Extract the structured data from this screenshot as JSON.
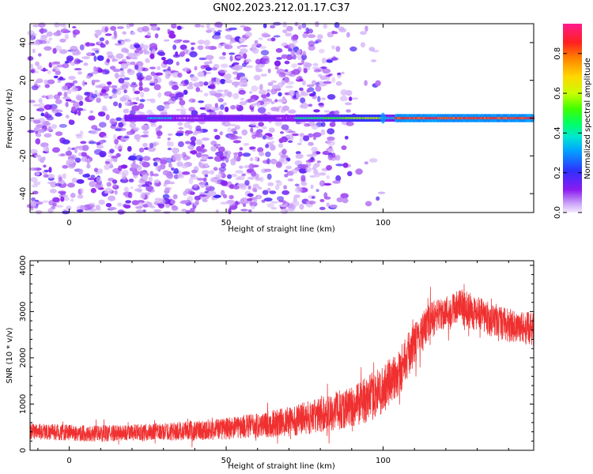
{
  "title": "GN02.2023.212.01.17.C37",
  "chart_data": [
    {
      "type": "heatmap",
      "title": "GN02.2023.212.01.17.C37",
      "xlabel": "Height of straight line (km)",
      "ylabel": "Frequency (Hz)",
      "xlim": [
        -12.5,
        148
      ],
      "ylim": [
        -50,
        50
      ],
      "x_ticks": [
        "0",
        "50",
        "100"
      ],
      "y_ticks": [
        "40",
        "20",
        "0",
        "-20",
        "-40"
      ],
      "colorbar": {
        "label": "Normalized spectral amplitude",
        "range": [
          0.0,
          0.95
        ],
        "ticks": [
          "0.0",
          "0.2",
          "0.4",
          "0.6",
          "0.8"
        ],
        "colormap": "rainbow-pastel (purple-blue-cyan-green-yellow-red-magenta)"
      },
      "features": [
        {
          "name": "",
          "description": "noise speckle (0.1-0.4 amplitude) across all frequencies, fading above ~85 km"
        },
        {
          "name": "",
          "description": "narrowband line at 0 Hz: weak 18-70 km, strengthening from ~73 km, strongest (~0.8-0.9) 102-148 km"
        }
      ]
    },
    {
      "type": "line",
      "title": "",
      "xlabel": "Height of straight line (km)",
      "ylabel": "SNR (10 * v/v)",
      "xlim": [
        -12.5,
        148
      ],
      "ylim": [
        0,
        4100
      ],
      "x_ticks": [
        "0",
        "50",
        "100"
      ],
      "y_ticks": [
        "0",
        "1000",
        "2000",
        "3000",
        "4000"
      ],
      "color": "#f03030",
      "series": [
        {
          "name": "",
          "x": [
            -12.5,
            0,
            10,
            20,
            30,
            40,
            50,
            60,
            70,
            80,
            90,
            95,
            100,
            105,
            110,
            115,
            120,
            125,
            130,
            135,
            140,
            145,
            148
          ],
          "y": [
            420,
            380,
            360,
            380,
            400,
            430,
            470,
            540,
            620,
            760,
            950,
            1100,
            1300,
            1700,
            2300,
            2800,
            3000,
            3100,
            2950,
            2800,
            2700,
            2650,
            2600
          ],
          "noise_band": [
            150,
            150,
            150,
            150,
            160,
            180,
            200,
            230,
            270,
            320,
            380,
            420,
            450,
            450,
            380,
            330,
            300,
            330,
            320,
            300,
            300,
            300,
            300
          ]
        }
      ]
    }
  ]
}
